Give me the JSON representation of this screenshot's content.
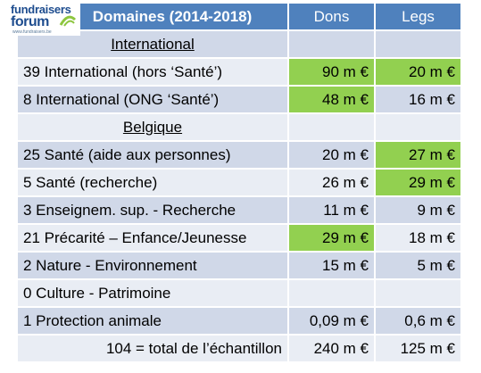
{
  "logo": {
    "line1": "fundraisers",
    "line2": "forum",
    "url": "www.fundraisers.be"
  },
  "header": {
    "domaines": "Domaines (2014-2018)",
    "dons": "Dons",
    "legs": "Legs"
  },
  "rows": [
    {
      "kind": "section",
      "label": "International",
      "dons": "",
      "legs": ""
    },
    {
      "kind": "data",
      "label": "39 International (hors ‘Santé’)",
      "dons": "90 m €",
      "legs": "20 m €",
      "dons_highlight": true,
      "legs_highlight": true
    },
    {
      "kind": "data",
      "label": "8 International (ONG ‘Santé’)",
      "dons": "48 m €",
      "legs": "16 m €",
      "dons_highlight": true,
      "legs_highlight": false
    },
    {
      "kind": "section",
      "label": "Belgique",
      "dons": "",
      "legs": ""
    },
    {
      "kind": "data",
      "label": "25 Santé (aide aux personnes)",
      "dons": "20 m €",
      "legs": "27 m €",
      "dons_highlight": false,
      "legs_highlight": true
    },
    {
      "kind": "data",
      "label": "5 Santé (recherche)",
      "dons": "26 m €",
      "legs": "29 m €",
      "dons_highlight": false,
      "legs_highlight": true
    },
    {
      "kind": "data",
      "label": "3 Enseignem. sup. - Recherche",
      "dons": "11 m €",
      "legs": "9 m €",
      "dons_highlight": false,
      "legs_highlight": false
    },
    {
      "kind": "data",
      "label": "21 Précarité – Enfance/Jeunesse",
      "dons": "29 m €",
      "legs": "18 m €",
      "dons_highlight": true,
      "legs_highlight": false
    },
    {
      "kind": "data",
      "label": "2 Nature - Environnement",
      "dons": "15 m €",
      "legs": "5 m €",
      "dons_highlight": false,
      "legs_highlight": false
    },
    {
      "kind": "data",
      "label": "0 Culture - Patrimoine",
      "dons": "",
      "legs": "",
      "dons_highlight": false,
      "legs_highlight": false
    },
    {
      "kind": "data",
      "label": "1 Protection animale",
      "dons": "0,09 m €",
      "legs": "0,6 m €",
      "dons_highlight": false,
      "legs_highlight": false
    },
    {
      "kind": "total",
      "label": "104 = total de l’échantillon",
      "dons": "240 m €",
      "legs": "125 m €",
      "dons_highlight": false,
      "legs_highlight": false
    }
  ],
  "colors": {
    "header": "#4f81bd",
    "row_dark": "#d0d8e8",
    "row_light": "#e9edf4",
    "highlight": "#92d050"
  }
}
